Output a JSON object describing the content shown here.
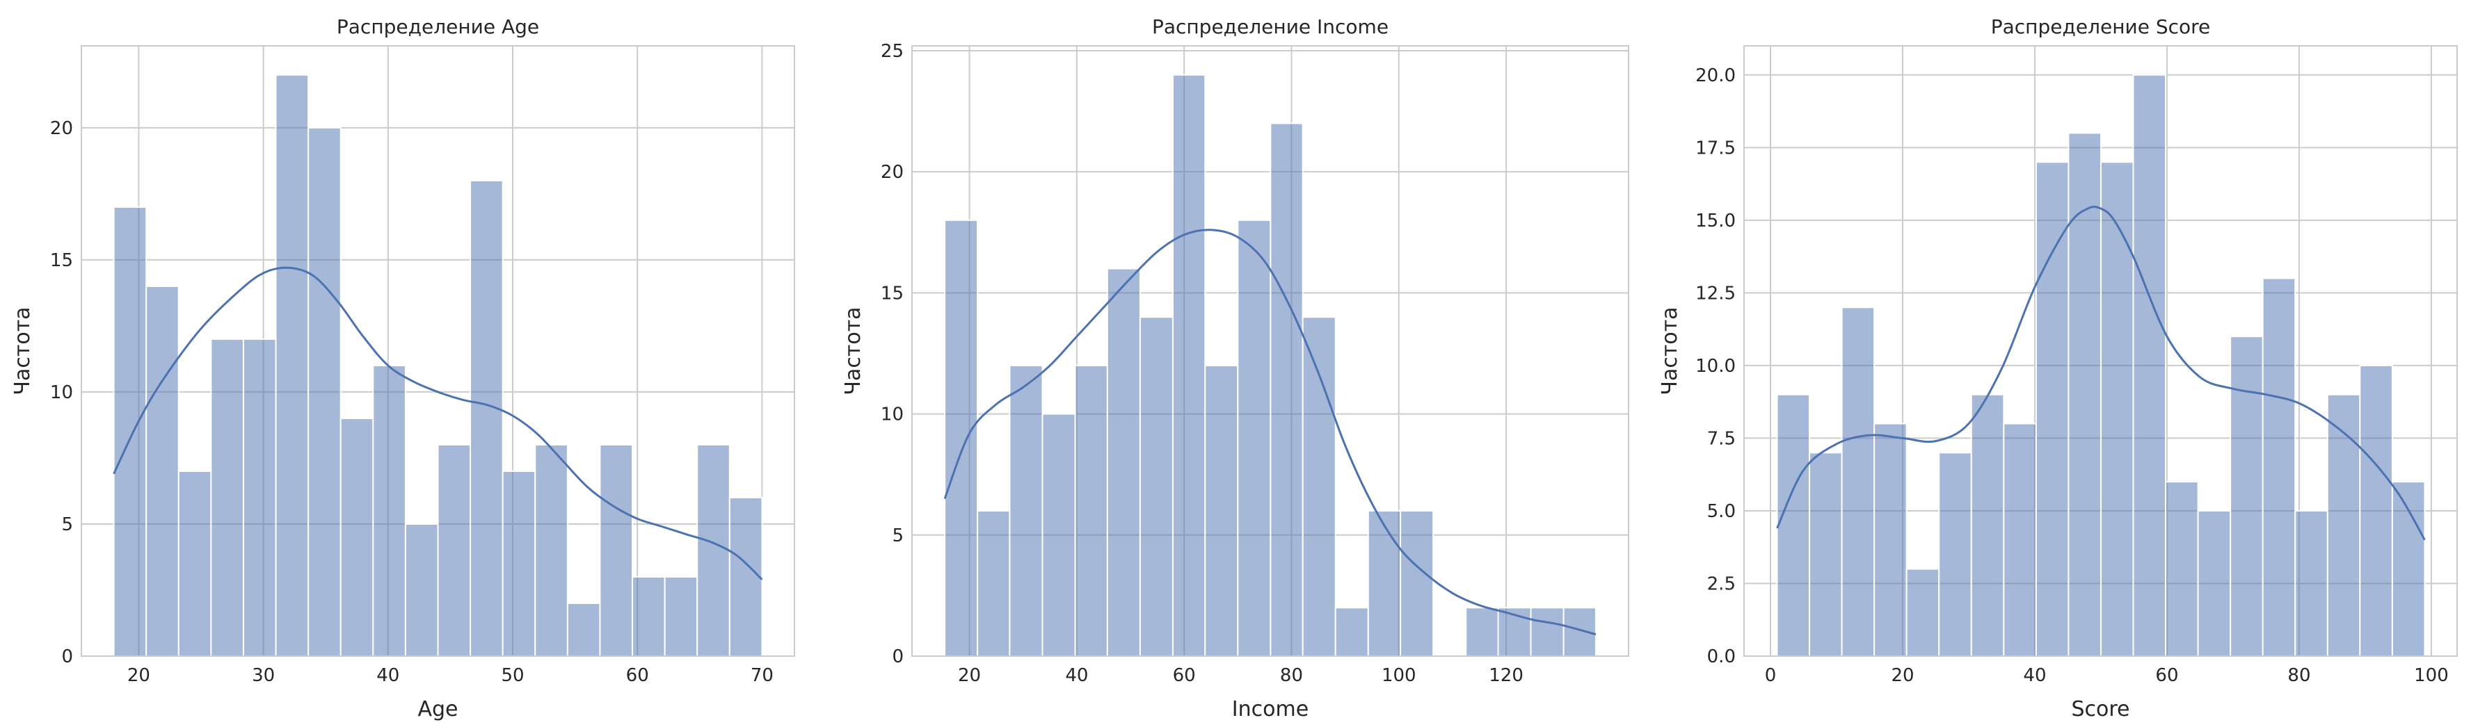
{
  "chart_data": [
    {
      "type": "bar",
      "title": "Распределение Age",
      "xlabel": "Age",
      "ylabel": "Частота",
      "xlim": [
        15.4,
        72.6
      ],
      "ylim": [
        0,
        23.1
      ],
      "xticks": [
        20,
        30,
        40,
        50,
        60,
        70
      ],
      "yticks": [
        0,
        5,
        10,
        15,
        20
      ],
      "bin_edges": [
        18.0,
        20.6,
        23.2,
        25.8,
        28.4,
        31.0,
        33.6,
        36.2,
        38.8,
        41.4,
        44.0,
        46.6,
        49.2,
        51.8,
        54.4,
        57.0,
        59.6,
        62.2,
        64.8,
        67.4,
        70.0
      ],
      "values": [
        17,
        14,
        7,
        12,
        12,
        22,
        20,
        9,
        11,
        5,
        8,
        18,
        7,
        8,
        2,
        8,
        3,
        3,
        8,
        6
      ],
      "kde": {
        "x": [
          18,
          20,
          22,
          25,
          28,
          30,
          32,
          34,
          36,
          38,
          40,
          42,
          44,
          46,
          48,
          50,
          52,
          54,
          56,
          58,
          60,
          62,
          64,
          66,
          68,
          70
        ],
        "y": [
          6.9,
          8.9,
          10.5,
          12.4,
          13.8,
          14.5,
          14.7,
          14.4,
          13.4,
          12.1,
          11.0,
          10.4,
          10.0,
          9.7,
          9.5,
          9.1,
          8.4,
          7.4,
          6.4,
          5.7,
          5.2,
          4.9,
          4.6,
          4.3,
          3.8,
          2.9
        ]
      },
      "grid": true
    },
    {
      "type": "bar",
      "title": "Распределение Income",
      "xlabel": "Income",
      "ylabel": "Частота",
      "xlim": [
        9.3,
        142.8
      ],
      "ylim": [
        0,
        25.2
      ],
      "xticks": [
        20,
        40,
        60,
        80,
        100,
        120
      ],
      "yticks": [
        0,
        5,
        10,
        15,
        20,
        25
      ],
      "bin_edges": [
        15.4,
        21.5,
        27.5,
        33.6,
        39.7,
        45.7,
        51.8,
        57.9,
        63.9,
        70.0,
        76.1,
        82.1,
        88.2,
        94.3,
        100.3,
        106.4,
        112.5,
        118.5,
        124.6,
        130.7,
        136.7
      ],
      "values": [
        18,
        6,
        12,
        10,
        12,
        16,
        14,
        24,
        12,
        18,
        22,
        14,
        2,
        6,
        6,
        0,
        2,
        2,
        2,
        2
      ],
      "kde": {
        "x": [
          15.4,
          20,
          25,
          30,
          35,
          40,
          45,
          50,
          55,
          60,
          65,
          70,
          75,
          80,
          85,
          90,
          95,
          100,
          105,
          110,
          115,
          120,
          125,
          130,
          136.7
        ],
        "y": [
          6.5,
          9.2,
          10.4,
          11.1,
          12.0,
          13.2,
          14.4,
          15.6,
          16.7,
          17.4,
          17.6,
          17.3,
          16.3,
          14.3,
          11.7,
          8.7,
          6.3,
          4.5,
          3.4,
          2.6,
          2.1,
          1.8,
          1.5,
          1.3,
          0.9
        ]
      },
      "grid": true
    },
    {
      "type": "bar",
      "title": "Распределение Score",
      "xlabel": "Score",
      "ylabel": "Частота",
      "xlim": [
        -4.0,
        103.9
      ],
      "ylim": [
        0,
        21.0
      ],
      "xticks": [
        0,
        20,
        40,
        60,
        80,
        100
      ],
      "yticks": [
        0.0,
        2.5,
        5.0,
        7.5,
        10.0,
        12.5,
        15.0,
        17.5,
        20.0
      ],
      "bin_edges": [
        1.0,
        5.9,
        10.8,
        15.7,
        20.6,
        25.5,
        30.4,
        35.3,
        40.2,
        45.1,
        50.0,
        54.9,
        59.8,
        64.7,
        69.6,
        74.5,
        79.4,
        84.3,
        89.2,
        94.1,
        99.0
      ],
      "values": [
        9,
        7,
        12,
        8,
        3,
        7,
        9,
        8,
        17,
        18,
        17,
        20,
        6,
        5,
        11,
        13,
        5,
        9,
        10,
        6
      ],
      "kde": {
        "x": [
          1,
          5,
          10,
          15,
          20,
          25,
          30,
          35,
          40,
          45,
          48,
          50,
          52,
          55,
          60,
          65,
          70,
          75,
          80,
          85,
          90,
          95,
          99
        ],
        "y": [
          4.4,
          6.4,
          7.3,
          7.6,
          7.5,
          7.4,
          8.0,
          9.9,
          12.7,
          14.8,
          15.4,
          15.4,
          15.0,
          13.7,
          11.0,
          9.6,
          9.2,
          9.0,
          8.7,
          8.0,
          7.0,
          5.6,
          4.0
        ]
      },
      "grid": true
    }
  ]
}
